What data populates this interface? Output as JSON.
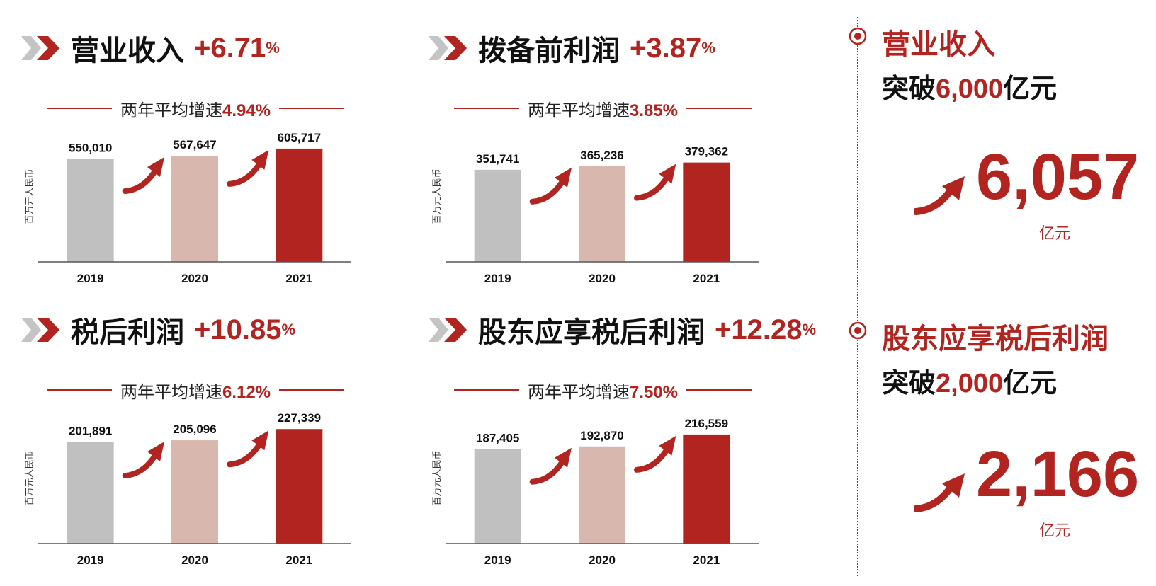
{
  "panels": [
    {
      "metric": "营业收入",
      "growth": "+6.71",
      "pct_sign": "%",
      "avg_label": "两年平均增速",
      "avg_value": "4.94%"
    },
    {
      "metric": "拨备前利润",
      "growth": "+3.87",
      "pct_sign": "%",
      "avg_label": "两年平均增速",
      "avg_value": "3.85%"
    },
    {
      "metric": "税后利润",
      "growth": "+10.85",
      "pct_sign": "%",
      "avg_label": "两年平均增速",
      "avg_value": "6.12%"
    },
    {
      "metric": "股东应享税后利润",
      "growth": "+12.28",
      "pct_sign": "%",
      "avg_label": "两年平均增速",
      "avg_value": "7.50%"
    }
  ],
  "highlights": [
    {
      "title": "营业收入",
      "sub_prefix": "突破",
      "sub_value": "6,000",
      "sub_suffix": "亿元",
      "big_number": "6,057",
      "unit": "亿元"
    },
    {
      "title": "股东应享税后利润",
      "sub_prefix": "突破",
      "sub_value": "2,000",
      "sub_suffix": "亿元",
      "big_number": "2,166",
      "unit": "亿元"
    }
  ],
  "colors": {
    "accent": "#b22420",
    "bar_2019": "#c0c0c0",
    "bar_2020": "#d8b8ae",
    "bar_2021": "#b22420"
  },
  "chart_data": [
    {
      "type": "bar",
      "ylabel": "百万元人民币",
      "categories": [
        "2019",
        "2020",
        "2021"
      ],
      "values": [
        550010,
        567647,
        605717
      ],
      "labels": [
        "550,010",
        "567,647",
        "605,717"
      ],
      "ylim": [
        0,
        700000
      ]
    },
    {
      "type": "bar",
      "ylabel": "百万元人民币",
      "categories": [
        "2019",
        "2020",
        "2021"
      ],
      "values": [
        351741,
        365236,
        379362
      ],
      "labels": [
        "351,741",
        "365,236",
        "379,362"
      ],
      "ylim": [
        0,
        500000
      ]
    },
    {
      "type": "bar",
      "ylabel": "百万元人民币",
      "categories": [
        "2019",
        "2020",
        "2021"
      ],
      "values": [
        201891,
        205096,
        227339
      ],
      "labels": [
        "201,891",
        "205,096",
        "227,339"
      ],
      "ylim": [
        0,
        260000
      ]
    },
    {
      "type": "bar",
      "ylabel": "百万元人民币",
      "categories": [
        "2019",
        "2020",
        "2021"
      ],
      "values": [
        187405,
        192870,
        216559
      ],
      "labels": [
        "187,405",
        "192,870",
        "216,559"
      ],
      "ylim": [
        0,
        260000
      ]
    }
  ]
}
